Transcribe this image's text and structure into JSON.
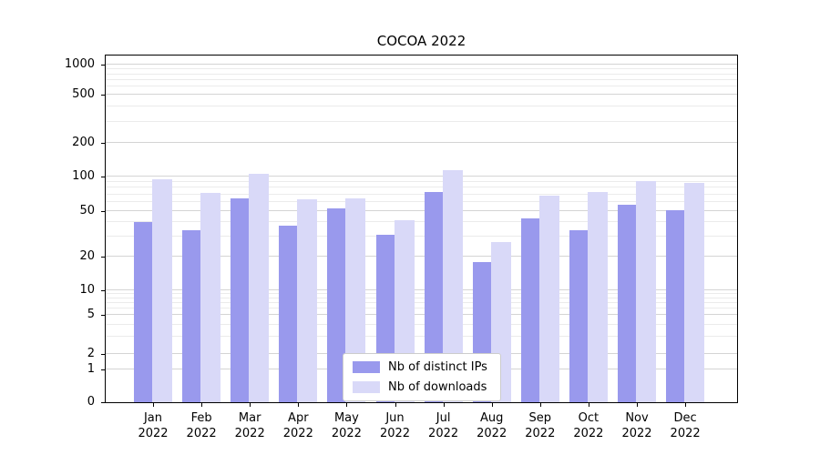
{
  "page": {
    "background": "#ffffff"
  },
  "chart_data": {
    "type": "bar",
    "title": "COCOA 2022",
    "scale": "symlog",
    "grid": "on",
    "legend_position": "lower center",
    "categories": [
      "Jan",
      "Feb",
      "Mar",
      "Apr",
      "May",
      "Jun",
      "Jul",
      "Aug",
      "Sep",
      "Oct",
      "Nov",
      "Dec"
    ],
    "year": "2022",
    "yticks": [
      0,
      1,
      2,
      5,
      10,
      20,
      50,
      100,
      200,
      500,
      1000
    ],
    "ytick_labels": [
      "0",
      "1",
      "2",
      "5",
      "10",
      "20",
      "50",
      "100",
      "200",
      "500",
      "1000"
    ],
    "ylim": [
      0,
      1000
    ],
    "series": [
      {
        "name": "Nb of distinct IPs",
        "color": "#9999ed",
        "values": [
          40,
          34,
          65,
          37,
          53,
          31,
          74,
          18,
          43,
          34,
          57,
          51
        ]
      },
      {
        "name": "Nb of downloads",
        "color": "#d9d9f8",
        "values": [
          95,
          72,
          105,
          63,
          65,
          42,
          115,
          27,
          68,
          74,
          92,
          88
        ]
      }
    ]
  }
}
